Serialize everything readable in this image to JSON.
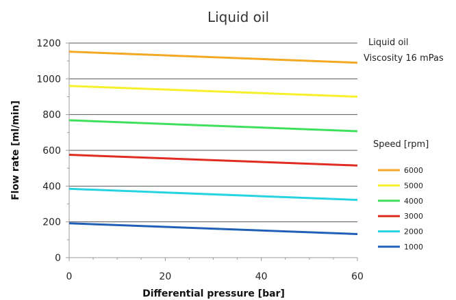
{
  "chart_data": {
    "type": "line",
    "title": "Liquid oil",
    "xlabel": "Differential pressure [bar]",
    "ylabel": "Flow rate [ml/min]",
    "xlim": [
      0,
      60
    ],
    "ylim": [
      0,
      1200
    ],
    "x_ticks": [
      "0",
      "20",
      "40",
      "60"
    ],
    "y_ticks": [
      "0",
      "200",
      "400",
      "600",
      "800",
      "1000",
      "1200"
    ],
    "grid": "horizontal",
    "annotations": [
      "Liquid oil",
      "Viscosity 16 mPas"
    ],
    "legend_title": "Speed [rpm]",
    "legend_position": "right",
    "series": [
      {
        "name": "6000",
        "color": "#f5a623",
        "x": [
          0,
          60
        ],
        "y": [
          1152,
          1090
        ]
      },
      {
        "name": "5000",
        "color": "#f5f029",
        "x": [
          0,
          60
        ],
        "y": [
          960,
          900
        ]
      },
      {
        "name": "4000",
        "color": "#3ee05b",
        "x": [
          0,
          60
        ],
        "y": [
          768,
          707
        ]
      },
      {
        "name": "3000",
        "color": "#e02a22",
        "x": [
          0,
          60
        ],
        "y": [
          575,
          515
        ]
      },
      {
        "name": "2000",
        "color": "#26d3e0",
        "x": [
          0,
          60
        ],
        "y": [
          385,
          323
        ]
      },
      {
        "name": "1000",
        "color": "#1f5fb8",
        "x": [
          0,
          60
        ],
        "y": [
          192,
          132
        ]
      }
    ]
  }
}
